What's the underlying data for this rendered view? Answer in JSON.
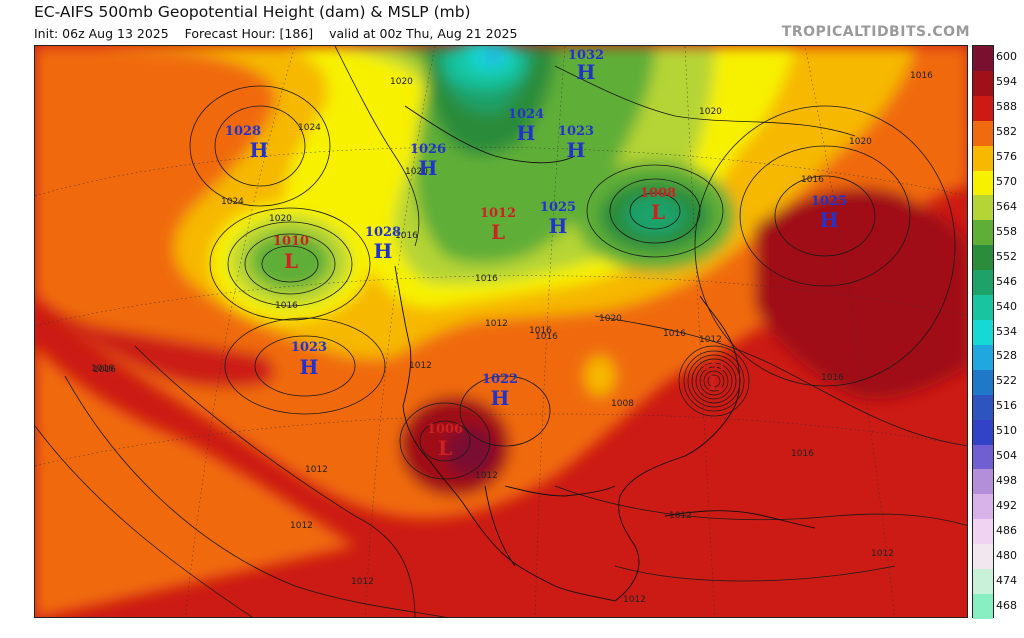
{
  "header": {
    "title": "EC-AIFS 500mb Geopotential Height (dam) & MSLP (mb)",
    "subtitle_init": "Init: 06z Aug 13 2025",
    "subtitle_hour": "Forecast Hour: [186]",
    "subtitle_valid": "valid at 00z Thu, Aug 21 2025",
    "watermark": "TROPICALTIDBITS.COM"
  },
  "colorbar": {
    "labels": [
      "600",
      "594",
      "588",
      "582",
      "576",
      "570",
      "564",
      "558",
      "552",
      "546",
      "540",
      "534",
      "528",
      "522",
      "516",
      "510",
      "504",
      "498",
      "492",
      "486",
      "480",
      "474",
      "468"
    ],
    "colors": [
      "#7a1030",
      "#a01018",
      "#cc1a14",
      "#f06a10",
      "#f6b800",
      "#f7f100",
      "#b5d435",
      "#5fae37",
      "#2b8c3b",
      "#1fa26a",
      "#19c4a0",
      "#16d8d4",
      "#20a7e0",
      "#1f78c8",
      "#2e54c0",
      "#3343c7",
      "#6f5fd0",
      "#b28fd8",
      "#d7b3ea",
      "#f0d3f3",
      "#f3e7ef",
      "#c9f0d8",
      "#88efc2"
    ]
  },
  "pressure_systems": [
    {
      "type": "H",
      "value": "1028"
    },
    {
      "type": "H",
      "value": "1032"
    },
    {
      "type": "H",
      "value": "1024"
    },
    {
      "type": "H",
      "value": "1026"
    },
    {
      "type": "H",
      "value": "1023"
    },
    {
      "type": "L",
      "value": "1010"
    },
    {
      "type": "H",
      "value": "1028"
    },
    {
      "type": "L",
      "value": "1012"
    },
    {
      "type": "H",
      "value": "1025"
    },
    {
      "type": "L",
      "value": "1008"
    },
    {
      "type": "H",
      "value": "1025"
    },
    {
      "type": "H",
      "value": "1023"
    },
    {
      "type": "H",
      "value": "1022"
    },
    {
      "type": "L",
      "value": "1006"
    },
    {
      "type": "L",
      "value": "951"
    }
  ],
  "isobar_labels": [
    "1020",
    "1024",
    "1024",
    "1020",
    "1016",
    "1016",
    "1016",
    "1020",
    "1016",
    "1012",
    "1012",
    "1016",
    "1020",
    "1016",
    "1020",
    "1020",
    "1016",
    "1012",
    "1012",
    "1012",
    "1016",
    "1012",
    "1008",
    "1012",
    "1016",
    "1012",
    "1016",
    "1016",
    "1012",
    "1012",
    "1016"
  ]
}
